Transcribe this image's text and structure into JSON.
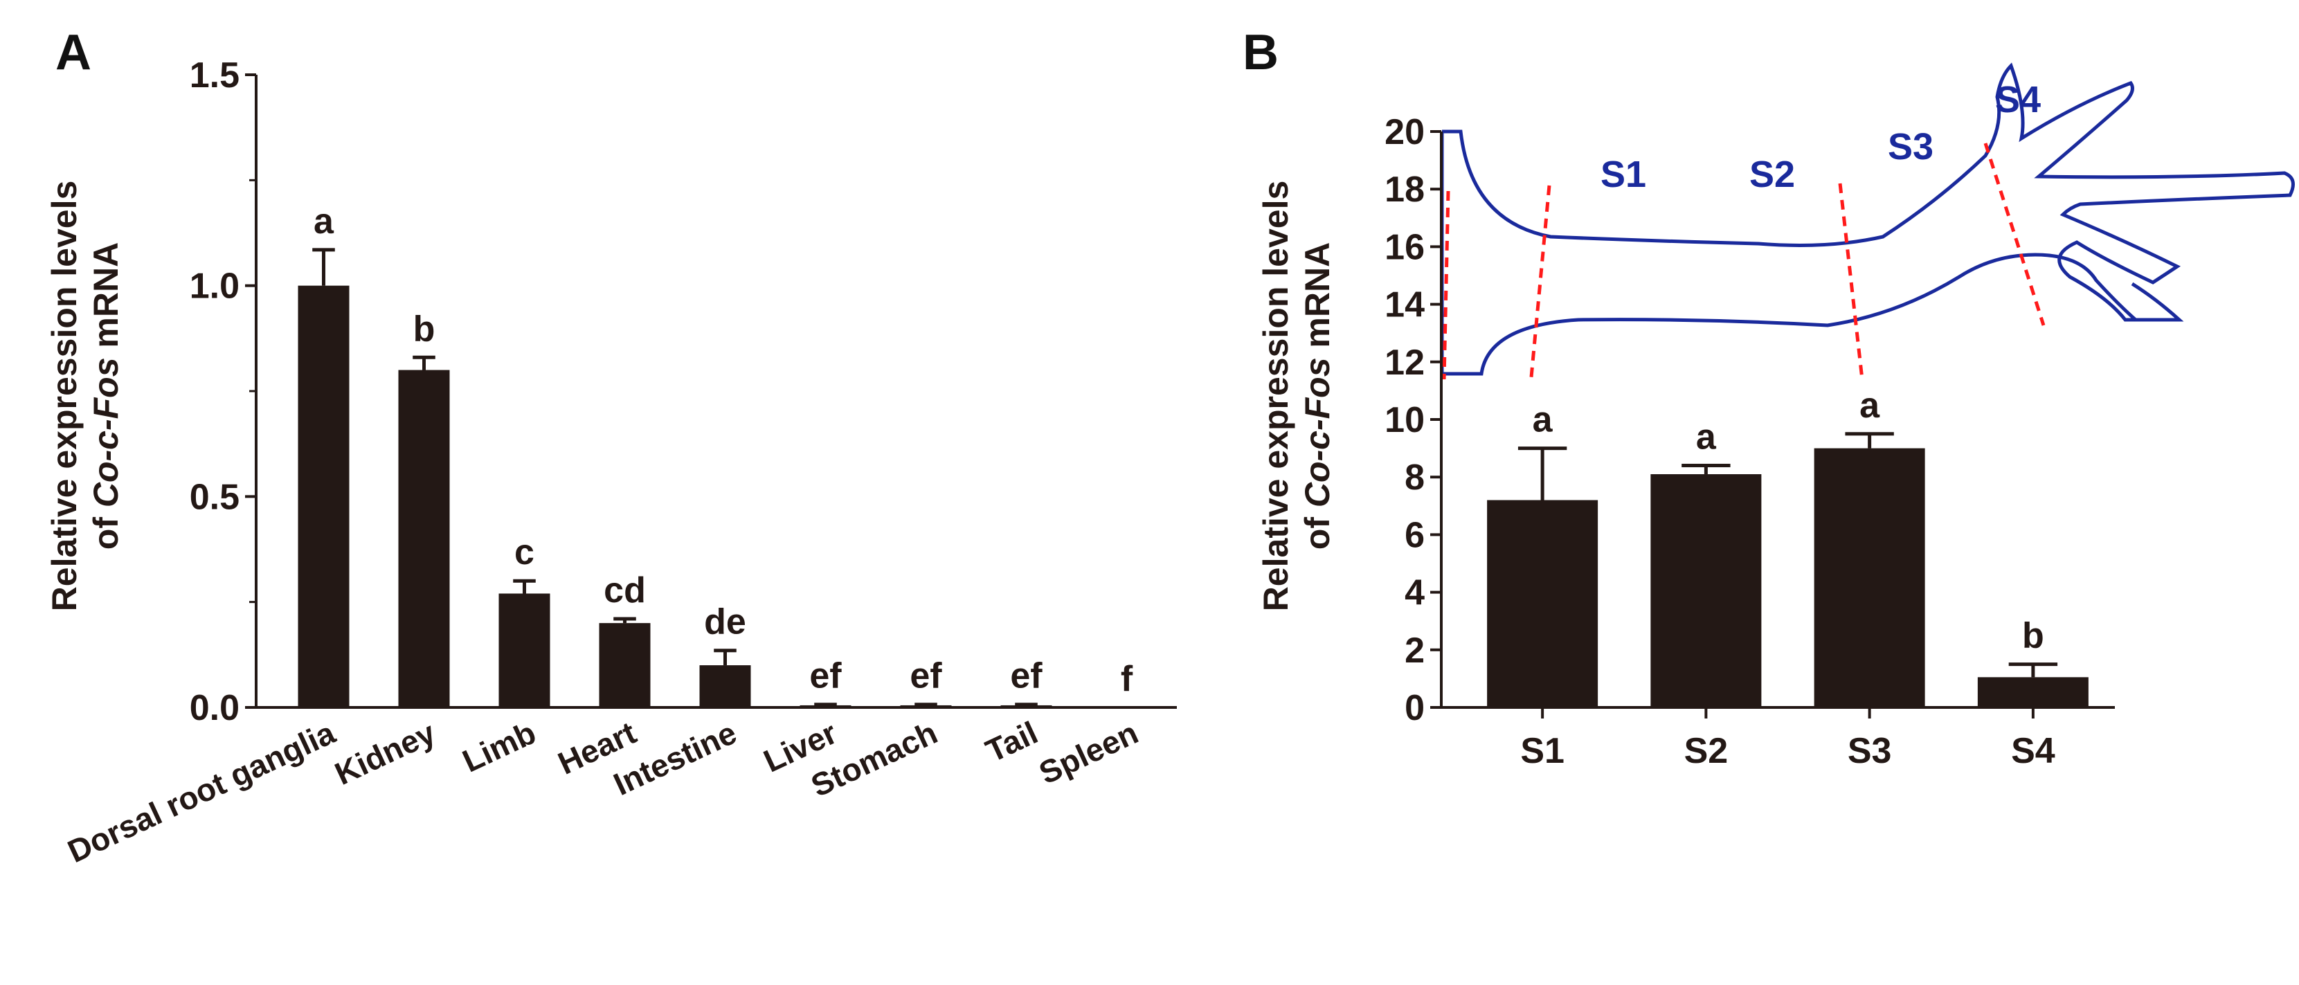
{
  "figure": {
    "panel_a_label": "A",
    "panel_b_label": "B",
    "ylabel_line1": "Relative expression levels",
    "ylabel_line2_prefix": "of ",
    "ylabel_line2_gene": "Co-c-Fos",
    "ylabel_line2_suffix": " mRNA",
    "bar_color": "#231815",
    "axis_color": "#231815",
    "limb_outline_color": "#1a2a9c",
    "segment_line_color": "#ff1a1a",
    "segment_label_color": "#1a2a9c"
  },
  "chart_data": [
    {
      "type": "bar",
      "panel": "A",
      "title": "",
      "xlabel": "",
      "ylabel": "Relative expression levels of Co-c-Fos mRNA",
      "ylim": [
        0,
        1.5
      ],
      "yticks": [
        "0.0",
        "0.5",
        "1.0",
        "1.5"
      ],
      "categories": [
        "Dorsal root ganglia",
        "Kidney",
        "Limb",
        "Heart",
        "Intestine",
        "Liver",
        "Stomach",
        "Tail",
        "Spleen"
      ],
      "values": [
        1.0,
        0.8,
        0.27,
        0.2,
        0.1,
        0.005,
        0.005,
        0.005,
        0.0
      ],
      "errors": [
        0.085,
        0.03,
        0.03,
        0.01,
        0.035,
        0.002,
        0.002,
        0.002,
        0.0
      ],
      "significance": [
        "a",
        "b",
        "c",
        "cd",
        "de",
        "ef",
        "ef",
        "ef",
        "f"
      ]
    },
    {
      "type": "bar",
      "panel": "B",
      "title": "",
      "xlabel": "",
      "ylabel": "Relative expression levels of Co-c-Fos mRNA",
      "ylim": [
        0,
        20
      ],
      "yticks": [
        "0",
        "2",
        "4",
        "6",
        "8",
        "10",
        "12",
        "14",
        "16",
        "18",
        "20"
      ],
      "categories": [
        "S1",
        "S2",
        "S3",
        "S4"
      ],
      "values": [
        7.2,
        8.1,
        9.0,
        1.05
      ],
      "errors": [
        1.8,
        0.3,
        0.5,
        0.45
      ],
      "significance": [
        "a",
        "a",
        "a",
        "b"
      ],
      "inset_segment_labels": [
        "S1",
        "S2",
        "S3",
        "S4"
      ]
    }
  ]
}
